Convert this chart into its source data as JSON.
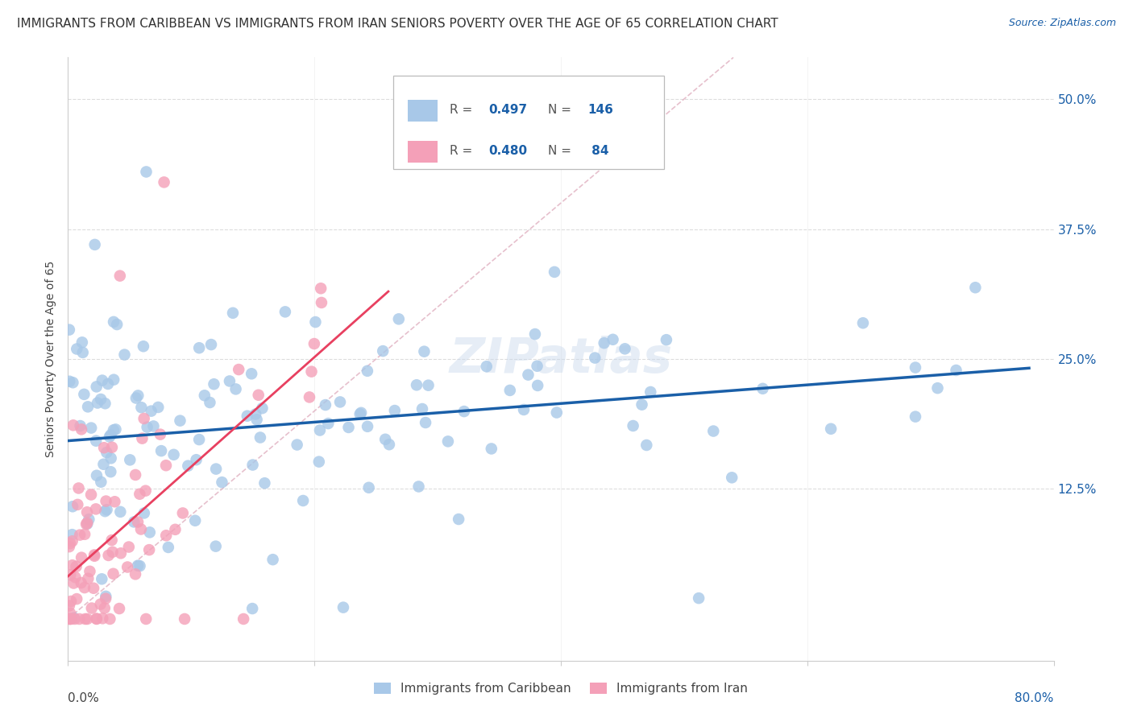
{
  "title": "IMMIGRANTS FROM CARIBBEAN VS IMMIGRANTS FROM IRAN SENIORS POVERTY OVER THE AGE OF 65 CORRELATION CHART",
  "source": "Source: ZipAtlas.com",
  "ylabel": "Seniors Poverty Over the Age of 65",
  "xlim": [
    0,
    0.8
  ],
  "ylim": [
    -0.04,
    0.54
  ],
  "legend_label1": "Immigrants from Caribbean",
  "legend_label2": "Immigrants from Iran",
  "R1": 0.497,
  "N1": 146,
  "R2": 0.48,
  "N2": 84,
  "color_caribbean": "#a8c8e8",
  "color_iran": "#f4a0b8",
  "color_line_caribbean": "#1a5fa8",
  "color_line_iran": "#e84060",
  "color_diag": "#e0b0c0",
  "title_fontsize": 11,
  "source_fontsize": 9,
  "axis_label_fontsize": 10,
  "legend_fontsize": 11,
  "watermark": "ZIPatlas"
}
